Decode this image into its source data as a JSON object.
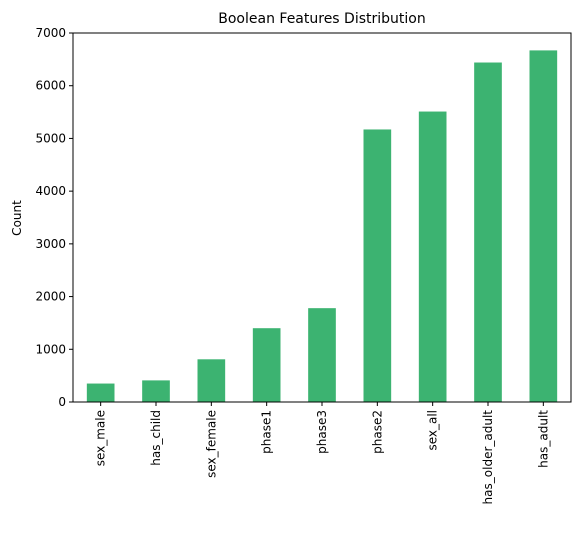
{
  "chart_data": {
    "type": "bar",
    "title": "Boolean Features Distribution",
    "xlabel": "",
    "ylabel": "Count",
    "categories": [
      "sex_male",
      "has_child",
      "sex_female",
      "phase1",
      "phase3",
      "phase2",
      "sex_all",
      "has_older_adult",
      "has_adult"
    ],
    "values": [
      350,
      410,
      810,
      1400,
      1780,
      5170,
      5510,
      6440,
      6670
    ],
    "ylim": [
      0,
      7000
    ],
    "yticks": [
      0,
      1000,
      2000,
      3000,
      4000,
      5000,
      6000,
      7000
    ],
    "grid": false,
    "legend": "none",
    "bar_color": "#3cb371"
  }
}
